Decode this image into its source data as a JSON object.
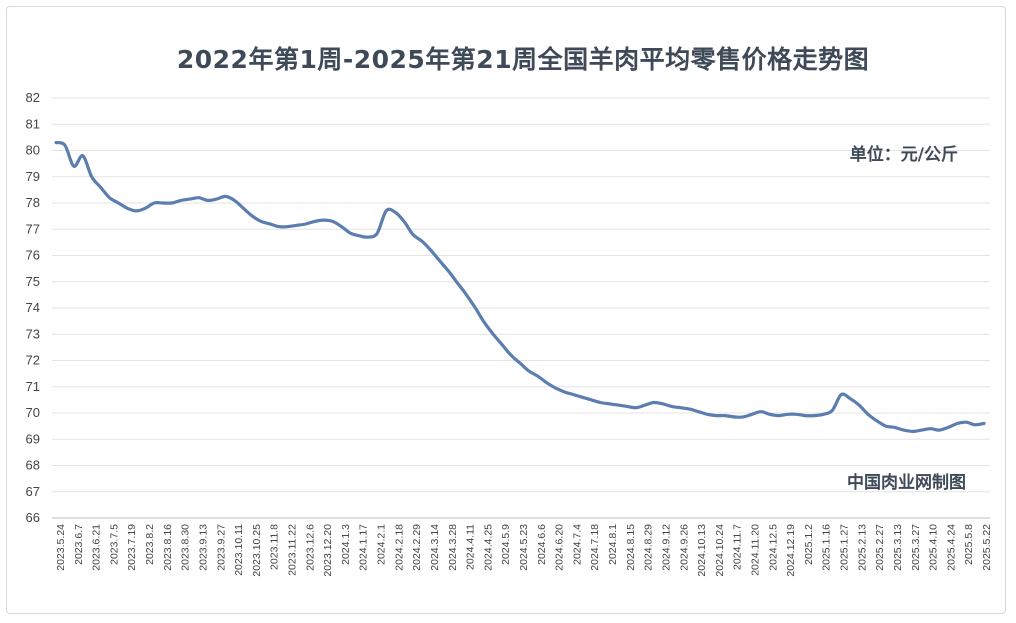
{
  "chart_data": {
    "type": "line",
    "title": "2022年第1周-2025年第21周全国羊肉平均零售价格走势图",
    "unit_label": "单位：元/公斤",
    "source_label": "中国肉业网制图",
    "ylim": [
      66,
      82
    ],
    "y_ticks": [
      66,
      67,
      68,
      69,
      70,
      71,
      72,
      73,
      74,
      75,
      76,
      77,
      78,
      79,
      80,
      81,
      82
    ],
    "grid": true,
    "x_tick_labels": [
      "2023.5.24",
      "2023.6.7",
      "2023.6.21",
      "2023.7.5",
      "2023.7.19",
      "2023.8.2",
      "2023.8.16",
      "2023.8.30",
      "2023.9.13",
      "2023.9.27",
      "2023.10.11",
      "2023.10.25",
      "2023.11.8",
      "2023.11.22",
      "2023.12.6",
      "2023.12.20",
      "2024.1.3",
      "2024.1.17",
      "2024.2.1",
      "2024.2.18",
      "2024.2.29",
      "2024.3.14",
      "2024.3.28",
      "2024.4.11",
      "2024.4.25",
      "2024.5.9",
      "2024.5.23",
      "2024.6.6",
      "2024.6.20",
      "2024.7.4",
      "2024.7.18",
      "2024.8.1",
      "2024.8.15",
      "2024.8.29",
      "2024.9.12",
      "2024.9.26",
      "2024.10.13",
      "2024.10.24",
      "2024.11.7",
      "2024.11.20",
      "2024.12.5",
      "2024.12.19",
      "2025.1.2",
      "2025.1.16",
      "2025.1.27",
      "2025.2.13",
      "2025.2.27",
      "2025.3.13",
      "2025.3.27",
      "2025.4.10",
      "2025.4.24",
      "2025.5.8",
      "2025.5.22"
    ],
    "series": [
      {
        "color": "#5b7db0",
        "values": [
          80.3,
          80.2,
          79.4,
          79.8,
          79.0,
          78.6,
          78.2,
          78.0,
          77.8,
          77.7,
          77.8,
          78.0,
          78.0,
          78.0,
          78.1,
          78.15,
          78.2,
          78.1,
          78.15,
          78.25,
          78.1,
          77.8,
          77.5,
          77.3,
          77.2,
          77.1,
          77.1,
          77.15,
          77.2,
          77.3,
          77.35,
          77.3,
          77.1,
          76.85,
          76.75,
          76.7,
          76.85,
          77.7,
          77.65,
          77.3,
          76.8,
          76.55,
          76.2,
          75.8,
          75.4,
          74.95,
          74.5,
          74.0,
          73.45,
          73.0,
          72.6,
          72.2,
          71.9,
          71.6,
          71.4,
          71.15,
          70.95,
          70.8,
          70.7,
          70.6,
          70.5,
          70.4,
          70.35,
          70.3,
          70.25,
          70.2,
          70.3,
          70.4,
          70.35,
          70.25,
          70.2,
          70.15,
          70.05,
          69.95,
          69.9,
          69.9,
          69.85,
          69.85,
          69.95,
          70.05,
          69.95,
          69.9,
          69.95,
          69.95,
          69.9,
          69.9,
          69.95,
          70.1,
          70.7,
          70.55,
          70.3,
          69.95,
          69.7,
          69.5,
          69.45,
          69.35,
          69.3,
          69.35,
          69.4,
          69.35,
          69.45,
          69.6,
          69.65,
          69.55,
          69.6
        ]
      }
    ]
  }
}
